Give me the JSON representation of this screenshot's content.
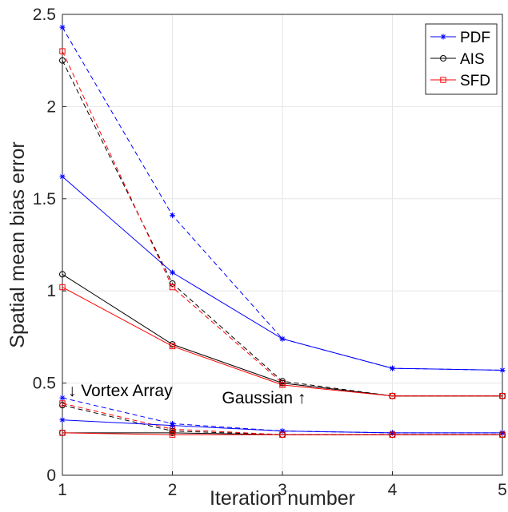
{
  "chart_data": {
    "type": "line",
    "xlabel": "Iteration number",
    "ylabel": "Spatial mean bias error",
    "xlim": [
      1,
      5
    ],
    "ylim": [
      0,
      2.5
    ],
    "x_ticks": [
      "1",
      "2",
      "3",
      "4",
      "5"
    ],
    "y_ticks": [
      "0",
      "0.5",
      "1",
      "1.5",
      "2",
      "2.5"
    ],
    "grid": true,
    "legend_position": "top-right",
    "legend": [
      {
        "name": "PDF",
        "color": "#0000ff",
        "marker": "star"
      },
      {
        "name": "AIS",
        "color": "#000000",
        "marker": "circle"
      },
      {
        "name": "SFD",
        "color": "#ff0000",
        "marker": "square"
      }
    ],
    "annotations": [
      {
        "text": "↓ Vortex Array",
        "x": 1.05,
        "y": 0.43
      },
      {
        "text": "Gaussian ↑",
        "x": 2.45,
        "y": 0.39
      }
    ],
    "x": [
      1,
      2,
      3,
      4,
      5
    ],
    "series": [
      {
        "group": "Gaussian",
        "method": "PDF",
        "color": "#0000ff",
        "style": "dashed",
        "marker": "star",
        "values": [
          2.43,
          1.41,
          0.74,
          0.58,
          0.57
        ]
      },
      {
        "group": "Gaussian",
        "method": "AIS",
        "color": "#000000",
        "style": "dashed",
        "marker": "circle",
        "values": [
          2.25,
          1.04,
          0.51,
          0.43,
          0.43
        ]
      },
      {
        "group": "Gaussian",
        "method": "SFD",
        "color": "#ff0000",
        "style": "dashed",
        "marker": "square",
        "values": [
          2.3,
          1.02,
          0.5,
          0.43,
          0.43
        ]
      },
      {
        "group": "Gaussian",
        "method": "PDF",
        "color": "#0000ff",
        "style": "solid",
        "marker": "star",
        "values": [
          1.62,
          1.1,
          0.74,
          0.58,
          0.57
        ]
      },
      {
        "group": "Gaussian",
        "method": "AIS",
        "color": "#000000",
        "style": "solid",
        "marker": "circle",
        "values": [
          1.09,
          0.71,
          0.5,
          0.43,
          0.43
        ]
      },
      {
        "group": "Gaussian",
        "method": "SFD",
        "color": "#ff0000",
        "style": "solid",
        "marker": "square",
        "values": [
          1.02,
          0.7,
          0.49,
          0.43,
          0.43
        ]
      },
      {
        "group": "Vortex Array",
        "method": "PDF",
        "color": "#0000ff",
        "style": "dashed",
        "marker": "star",
        "values": [
          0.42,
          0.28,
          0.24,
          0.23,
          0.23
        ]
      },
      {
        "group": "Vortex Array",
        "method": "AIS",
        "color": "#000000",
        "style": "dashed",
        "marker": "circle",
        "values": [
          0.38,
          0.24,
          0.22,
          0.22,
          0.22
        ]
      },
      {
        "group": "Vortex Array",
        "method": "SFD",
        "color": "#ff0000",
        "style": "dashed",
        "marker": "square",
        "values": [
          0.39,
          0.25,
          0.22,
          0.22,
          0.22
        ]
      },
      {
        "group": "Vortex Array",
        "method": "PDF",
        "color": "#0000ff",
        "style": "solid",
        "marker": "star",
        "values": [
          0.3,
          0.27,
          0.24,
          0.23,
          0.23
        ]
      },
      {
        "group": "Vortex Array",
        "method": "AIS",
        "color": "#000000",
        "style": "solid",
        "marker": "circle",
        "values": [
          0.23,
          0.23,
          0.22,
          0.22,
          0.22
        ]
      },
      {
        "group": "Vortex Array",
        "method": "SFD",
        "color": "#ff0000",
        "style": "solid",
        "marker": "square",
        "values": [
          0.23,
          0.22,
          0.22,
          0.22,
          0.22
        ]
      }
    ]
  }
}
